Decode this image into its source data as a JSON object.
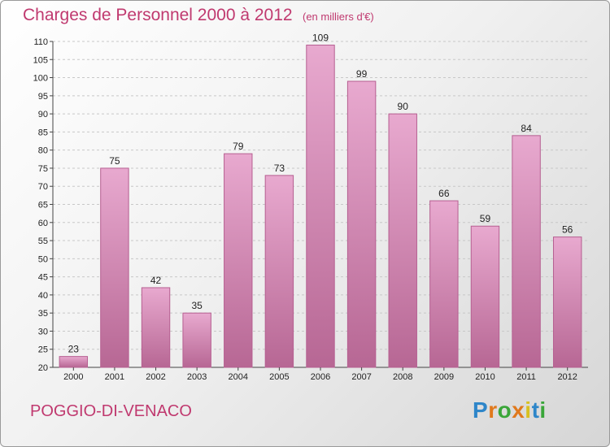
{
  "header": {
    "title": "Charges de Personnel 2000 à 2012",
    "subtitle": "(en milliers d'€)"
  },
  "footer": {
    "commune": "POGGIO-DI-VENACO",
    "logo": {
      "letters": [
        "P",
        "r",
        "o",
        "x",
        "i",
        "t",
        "i"
      ],
      "colors": [
        "#2e86c9",
        "#e0791c",
        "#3aa639",
        "#e0791c",
        "#d8c020",
        "#2e86c9",
        "#3aa639"
      ]
    }
  },
  "colors": {
    "bar_fill": "#d88cb6",
    "bar_edge": "#b65f91",
    "text_accent": "#c0396f"
  },
  "chart_data": {
    "type": "bar",
    "title": "Charges de Personnel 2000 à 2012",
    "subtitle": "(en milliers d'€)",
    "categories": [
      "2000",
      "2001",
      "2002",
      "2003",
      "2004",
      "2005",
      "2006",
      "2007",
      "2008",
      "2009",
      "2010",
      "2011",
      "2012"
    ],
    "values": [
      23,
      75,
      42,
      35,
      79,
      73,
      109,
      99,
      90,
      66,
      59,
      84,
      56
    ],
    "ylim": [
      20,
      110
    ],
    "yticks": [
      20,
      25,
      30,
      35,
      40,
      45,
      50,
      55,
      60,
      65,
      70,
      75,
      80,
      85,
      90,
      95,
      100,
      105,
      110
    ],
    "grid": true,
    "data_labels": true
  }
}
